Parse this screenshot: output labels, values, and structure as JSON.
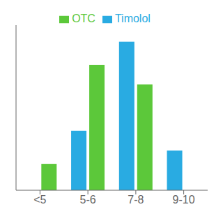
{
  "chart_data": {
    "type": "bar",
    "categories": [
      "<5",
      "5-6",
      "7-8",
      "9-10"
    ],
    "series": [
      {
        "name": "Timolol",
        "color": "#29ABE2",
        "values": [
          0,
          18,
          45,
          12
        ]
      },
      {
        "name": "OTC",
        "color": "#5CC83A",
        "values": [
          8,
          38,
          32,
          0
        ]
      }
    ],
    "ylim": [
      0,
      50
    ],
    "grid": false,
    "legend": "top",
    "tick_labels": "x"
  }
}
